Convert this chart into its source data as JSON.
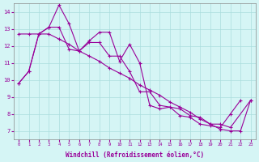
{
  "line1_x": [
    0,
    1,
    2,
    3,
    4,
    5,
    6,
    7,
    8,
    9,
    10,
    11,
    12,
    13,
    14,
    15,
    16,
    17,
    18,
    19,
    20,
    21,
    22,
    23
  ],
  "line1_y": [
    9.8,
    10.5,
    12.7,
    13.1,
    14.4,
    13.3,
    11.7,
    12.3,
    12.8,
    12.8,
    11.1,
    12.1,
    11.0,
    8.5,
    8.3,
    8.4,
    7.9,
    7.8,
    7.4,
    7.3,
    7.2,
    8.0,
    8.8,
    null
  ],
  "line2_x": [
    0,
    1,
    2,
    3,
    4,
    5,
    6,
    7,
    8,
    9,
    10,
    11,
    12,
    13,
    14,
    15,
    16,
    17,
    18,
    19,
    20,
    21,
    22,
    23
  ],
  "line2_y": [
    12.7,
    12.7,
    12.7,
    12.7,
    12.4,
    12.1,
    11.7,
    11.4,
    11.1,
    10.7,
    10.4,
    10.1,
    9.7,
    9.4,
    9.1,
    8.7,
    8.4,
    8.1,
    7.7,
    7.4,
    7.1,
    7.0,
    7.0,
    8.8
  ],
  "line3_x": [
    0,
    1,
    2,
    3,
    4,
    5,
    6,
    7,
    8,
    9,
    10,
    11,
    12,
    13,
    14,
    15,
    16,
    17,
    18,
    19,
    20,
    21,
    22,
    23
  ],
  "line3_y": [
    9.8,
    10.5,
    12.7,
    13.1,
    13.1,
    11.8,
    11.7,
    12.2,
    12.2,
    11.4,
    11.4,
    10.5,
    9.3,
    9.3,
    8.5,
    8.4,
    8.3,
    7.9,
    7.8,
    7.4,
    7.4,
    7.2,
    null,
    8.8
  ],
  "xlabel": "Windchill (Refroidissement éolien,°C)",
  "ylim": [
    6.5,
    14.5
  ],
  "xlim": [
    -0.5,
    23.5
  ],
  "yticks": [
    7,
    8,
    9,
    10,
    11,
    12,
    13,
    14
  ],
  "xticks": [
    0,
    1,
    2,
    3,
    4,
    5,
    6,
    7,
    8,
    9,
    10,
    11,
    12,
    13,
    14,
    15,
    16,
    17,
    18,
    19,
    20,
    21,
    22,
    23
  ],
  "line_color": "#990099",
  "bg_color": "#d5f5f5",
  "grid_color": "#aadddd",
  "marker": "+"
}
